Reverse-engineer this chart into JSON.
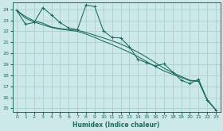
{
  "xlabel": "Humidex (Indice chaleur)",
  "bg_color": "#cce8e8",
  "grid_color": "#aad0d0",
  "line_color": "#1a6b5a",
  "xlim": [
    -0.5,
    23.5
  ],
  "ylim": [
    14.7,
    24.6
  ],
  "yticks": [
    15,
    16,
    17,
    18,
    19,
    20,
    21,
    22,
    23,
    24
  ],
  "xticks": [
    0,
    1,
    2,
    3,
    4,
    5,
    6,
    7,
    8,
    9,
    10,
    11,
    12,
    13,
    14,
    15,
    16,
    17,
    18,
    19,
    20,
    21,
    22,
    23
  ],
  "series1_x": [
    0,
    1,
    2,
    3,
    4,
    5,
    6,
    7,
    8,
    9,
    10,
    11,
    12,
    13,
    14,
    15,
    16,
    17,
    18,
    19,
    20,
    21,
    22,
    23
  ],
  "series1_y": [
    23.9,
    22.65,
    22.8,
    24.15,
    23.5,
    22.8,
    22.3,
    22.15,
    24.4,
    24.25,
    22.05,
    21.45,
    21.4,
    20.6,
    19.45,
    19.15,
    18.85,
    19.05,
    18.3,
    17.55,
    17.25,
    17.65,
    15.75,
    14.85
  ],
  "series2_x": [
    0,
    1,
    2,
    3,
    4,
    5,
    6,
    7,
    8,
    9,
    10,
    11,
    12,
    13,
    14,
    15,
    16,
    17,
    18,
    19,
    20,
    21,
    22,
    23
  ],
  "series2_y": [
    23.9,
    23.35,
    22.95,
    22.75,
    22.4,
    22.25,
    22.15,
    22.1,
    21.9,
    21.65,
    21.4,
    21.15,
    20.85,
    20.5,
    20.1,
    19.65,
    19.15,
    18.65,
    18.25,
    17.9,
    17.55,
    17.5,
    15.8,
    14.85
  ],
  "series3_x": [
    0,
    1,
    2,
    3,
    4,
    5,
    6,
    7,
    8,
    9,
    10,
    11,
    12,
    13,
    14,
    15,
    16,
    17,
    18,
    19,
    20,
    21,
    22,
    23
  ],
  "series3_y": [
    23.9,
    23.2,
    22.85,
    22.6,
    22.35,
    22.2,
    22.1,
    22.0,
    21.75,
    21.45,
    21.1,
    20.8,
    20.45,
    20.1,
    19.7,
    19.25,
    18.8,
    18.4,
    18.1,
    17.8,
    17.5,
    17.45,
    15.7,
    14.85
  ]
}
